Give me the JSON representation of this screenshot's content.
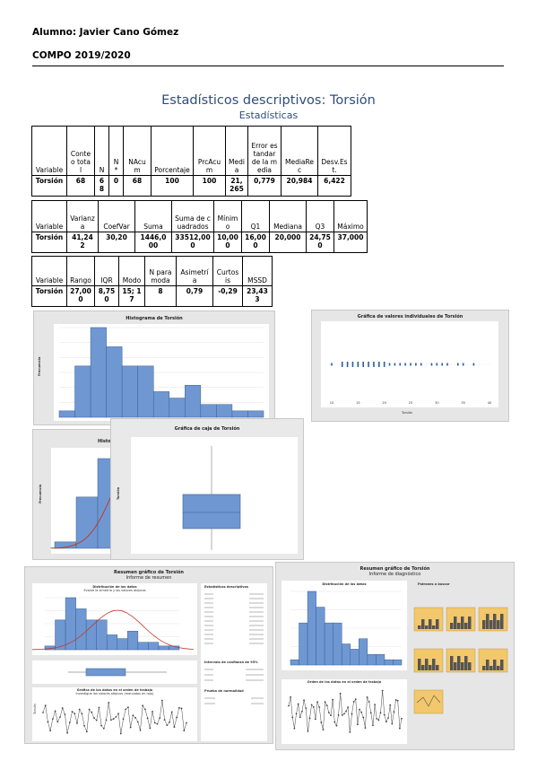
{
  "header": {
    "student_line": "Alumno: Javier Cano Gómez",
    "course_line": "COMPO 2019/2020"
  },
  "title": "Estadísticos descriptivos: Torsión",
  "subtitle": "Estadísticas",
  "table1": {
    "headers": [
      "Variable",
      "Conteo total",
      "N",
      "N*",
      "NAcum",
      "Porcentaje",
      "PrcAcum",
      "Media",
      "Error estandar de la media",
      "MediaRec",
      "Desv.Est."
    ],
    "row": [
      "Torsión",
      "68",
      "68",
      "0",
      "68",
      "100",
      "100",
      "21,265",
      "0,779",
      "20,984",
      "6,422"
    ]
  },
  "table2": {
    "headers": [
      "Variable",
      "Varianza",
      "CoefVar",
      "Suma",
      "Suma de cuadrados",
      "Mínimo",
      "Q1",
      "Mediana",
      "Q3",
      "Máximo"
    ],
    "row": [
      "Torsión",
      "41,242",
      "30,20",
      "1446,000",
      "33512,000",
      "10,000",
      "16,000",
      "20,000",
      "24,750",
      "37,000"
    ]
  },
  "table3": {
    "headers": [
      "Variable",
      "Rango",
      "IQR",
      "Modo",
      "N para moda",
      "Asimetría",
      "Curtosis",
      "MSSD"
    ],
    "row": [
      "Torsión",
      "27,000",
      "8,750",
      "15; 17",
      "8",
      "0,79",
      "-0,29",
      "23,433"
    ]
  },
  "graphs": {
    "histogram_title": "Histograma de Torsión",
    "histogram_ylabel": "Frecuencia",
    "histogram_bars": [
      1,
      8,
      14,
      11,
      8,
      8,
      4,
      3,
      5,
      2,
      2,
      1,
      1
    ],
    "dotplot_title": "Gráfica de valores individuales de Torsión",
    "dotplot_xlabel": "Torsión",
    "dotplot_ticks": [
      "10",
      "15",
      "20",
      "25",
      "30",
      "35",
      "40"
    ],
    "histfit_title": "Histo",
    "histfit_ylabel": "Frecuencia",
    "boxplot_title": "Gráfica de caja de Torsión",
    "boxplot_ylabel": "Torsión",
    "summary1_title": "Resumen gráfico de Torsión",
    "summary1_subtitle": "Informe de resumen",
    "summary1_dist_title": "Distribución de los datos",
    "summary1_dist_sub": "Evalúe la simetría y los valores atípicos",
    "summary1_stats_title": "Estadísticas descriptivas",
    "summary1_ci_title": "Intervalo de confianza de 95%",
    "summary1_norm_title": "Prueba de normalidad",
    "summary1_order_title": "Gráfica de los datos en el orden de trabajo",
    "summary1_order_sub": "Investigue los valores atípicos (marcados en rojo)",
    "summary1_ylabel": "Torsión",
    "summary2_title": "Resumen gráfico de Torsión",
    "summary2_subtitle": "Informe de diagnóstico",
    "summary2_dist_title": "Distribución de los datos",
    "summary2_order_title": "Orden de los datos en el orden de trabajo",
    "summary2_shapes_title": "Patrones a buscar"
  },
  "colors": {
    "bar": "#6f98d3",
    "bar_stroke": "#3c5d8f",
    "accent_title": "#2e4d7b",
    "fit_curve": "#c0392b",
    "dot": "#2b5ea8",
    "mini_panel": "#f3c76b"
  }
}
